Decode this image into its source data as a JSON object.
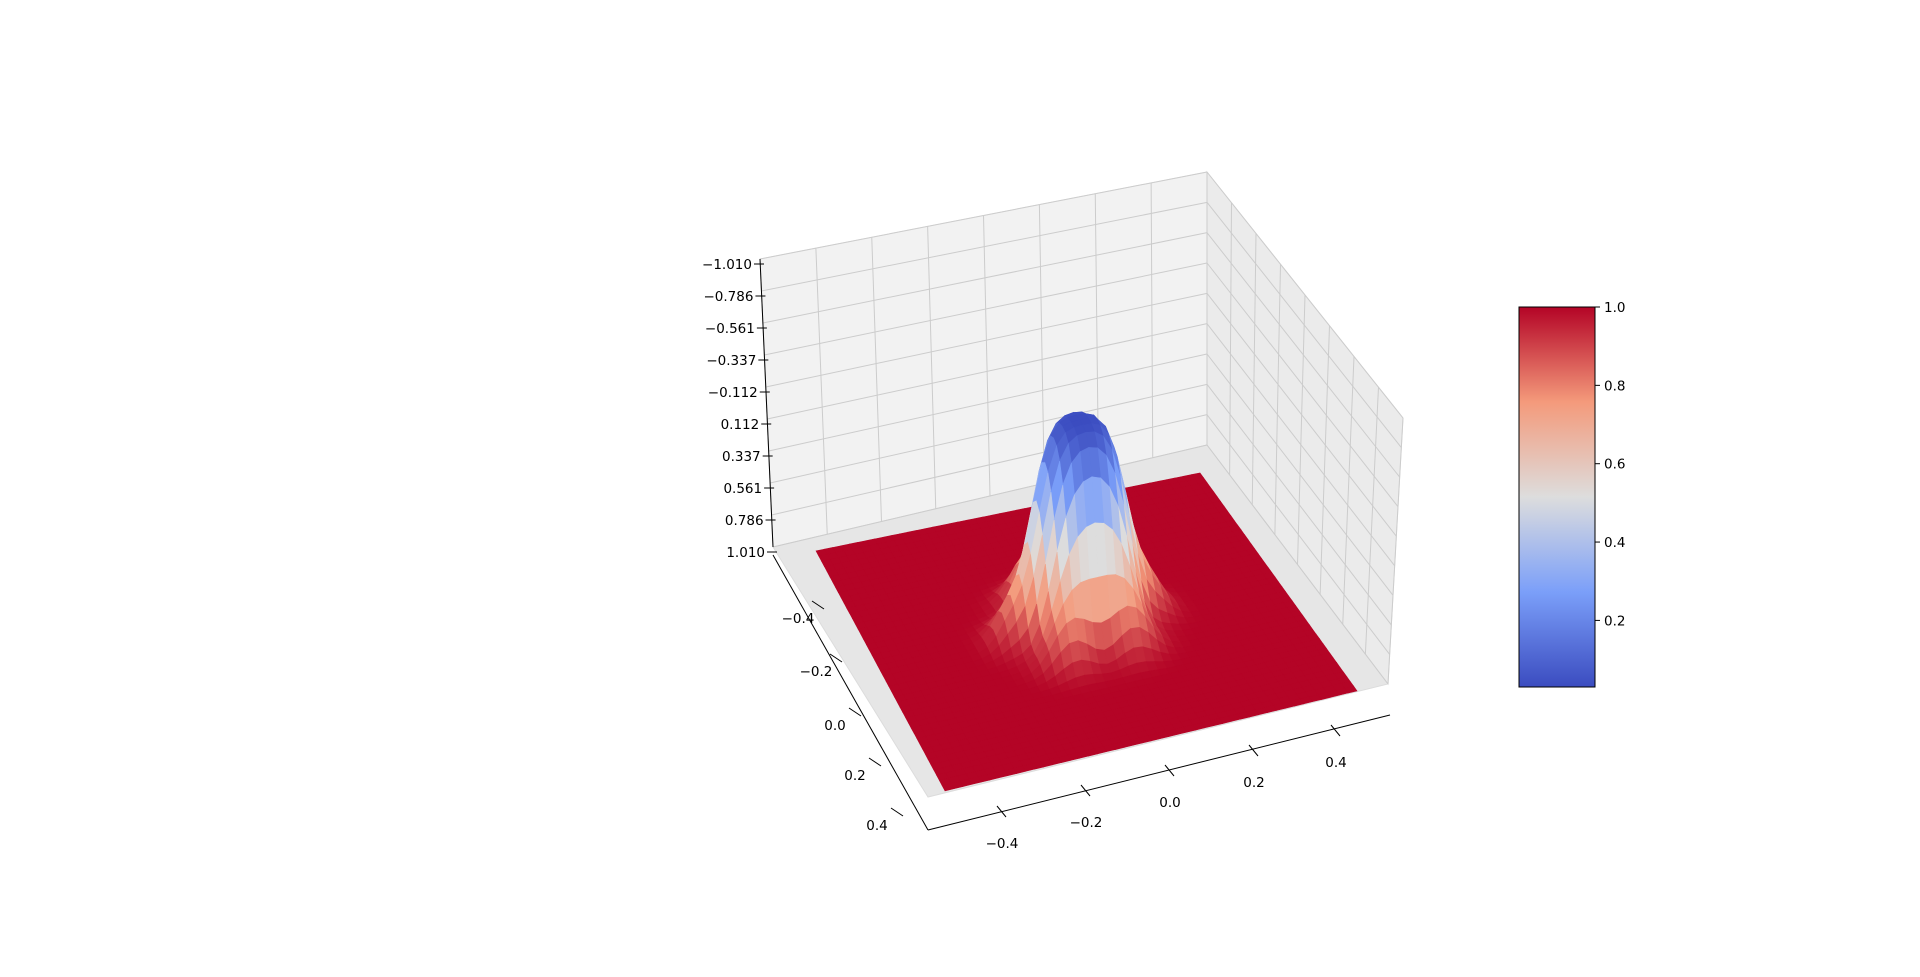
{
  "chart_data": {
    "type": "surface3d",
    "title": "",
    "colormap": "coolwarm",
    "colormap_colors": [
      "#3b4cc0",
      "#dddddd",
      "#b40426"
    ],
    "x_ticks": [
      "−0.4",
      "−0.2",
      "0.0",
      "0.2",
      "0.4"
    ],
    "y_ticks": [
      "−0.4",
      "−0.2",
      "0.0",
      "0.2",
      "0.4"
    ],
    "z_ticks": [
      "−1.010",
      "−0.786",
      "−0.561",
      "−0.337",
      "−0.112",
      "0.112",
      "0.337",
      "0.561",
      "0.786",
      "1.010"
    ],
    "zlim": [
      -1.01,
      1.01
    ],
    "z_axis_inverted": true,
    "x_range": [
      -0.5,
      0.5
    ],
    "y_range": [
      -0.5,
      0.5
    ],
    "surface": {
      "description_of_shape": "flat plane at z≈1.0 with a circular well centred at origin",
      "plane_value": 1.0,
      "well_min": 0.03,
      "well_radius": 0.13
    },
    "colorbar": {
      "ticks": [
        "0.2",
        "0.4",
        "0.6",
        "0.8",
        "1.0"
      ],
      "tick_values": [
        0.2,
        0.4,
        0.6,
        0.8,
        1.0
      ],
      "range": [
        0.03,
        1.0
      ]
    },
    "grid": true
  }
}
